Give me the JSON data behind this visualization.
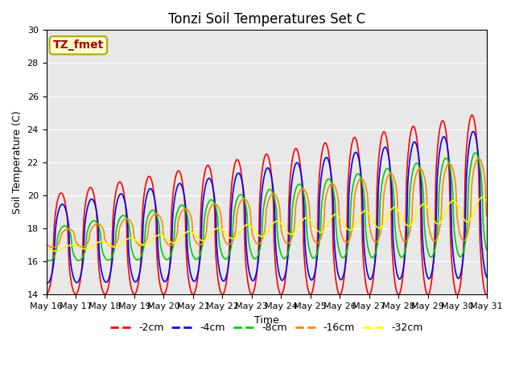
{
  "title": "Tonzi Soil Temperatures Set C",
  "xlabel": "Time",
  "ylabel": "Soil Temperature (C)",
  "ylim": [
    14,
    30
  ],
  "series_labels": [
    "-2cm",
    "-4cm",
    "-8cm",
    "-16cm",
    "-32cm"
  ],
  "series_colors": [
    "#ff0000",
    "#0000ff",
    "#00cc00",
    "#ff8800",
    "#ffff00"
  ],
  "annotation_text": "TZ_fmet",
  "annotation_color": "#aa0000",
  "annotation_bg": "#ffffcc",
  "annotation_border": "#aaaa00",
  "background_color": "#e8e8e8",
  "title_fontsize": 12,
  "axis_label_fontsize": 9,
  "tick_label_fontsize": 8,
  "legend_fontsize": 9
}
